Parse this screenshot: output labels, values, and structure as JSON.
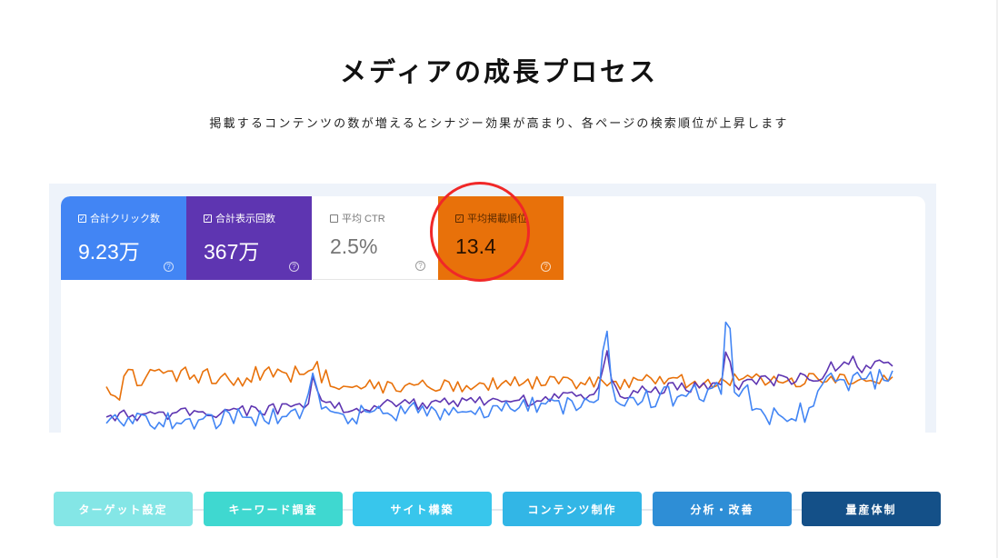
{
  "page": {
    "title": "メディアの成長プロセス",
    "subtitle": "掲載するコンテンツの数が増えるとシナジー効果が高まり、各ページの検索順位が上昇します"
  },
  "metrics": [
    {
      "label": "合計クリック数",
      "value": "9.23万",
      "checked": true,
      "color": "#4285f4"
    },
    {
      "label": "合計表示回数",
      "value": "367万",
      "checked": true,
      "color": "#5e35b1"
    },
    {
      "label": "平均 CTR",
      "value": "2.5%",
      "checked": false,
      "color": "#ffffff"
    },
    {
      "label": "平均掲載順位",
      "value": "13.4",
      "checked": true,
      "color": "#e8710a"
    }
  ],
  "colors": {
    "clicks": "#4285f4",
    "impressions": "#5e35b1",
    "position": "#e8710a",
    "annotation": "#f02828"
  },
  "steps": [
    {
      "label": "ターゲット設定",
      "color": "#84e6e6"
    },
    {
      "label": "キーワード調査",
      "color": "#3fd8d0"
    },
    {
      "label": "サイト構築",
      "color": "#38c6ec"
    },
    {
      "label": "コンテンツ制作",
      "color": "#32b6e6"
    },
    {
      "label": "分析・改善",
      "color": "#2e8ed6"
    },
    {
      "label": "量産体制",
      "color": "#145088"
    }
  ]
}
